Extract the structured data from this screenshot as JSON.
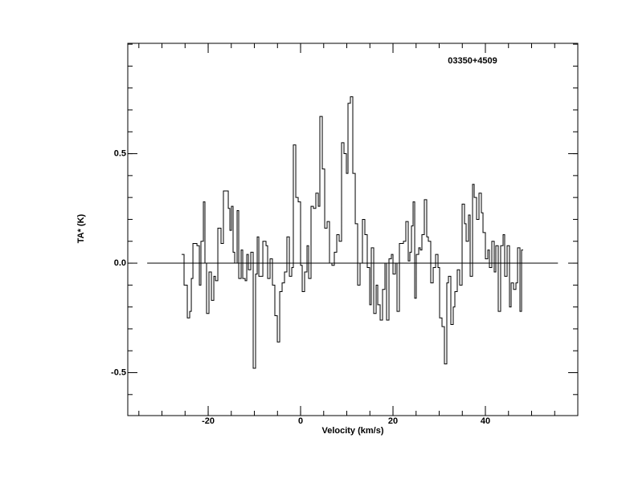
{
  "chart_data": {
    "type": "step",
    "annotation": "03350+4509",
    "xlabel": "Velocity (km/s)",
    "ylabel": "TA* (K)",
    "xlim": [
      -37.4,
      60
    ],
    "ylim": [
      -0.696,
      1.004
    ],
    "xticks": [
      -20,
      0,
      20,
      40
    ],
    "yticks": [
      {
        "value": -0.5,
        "label": "-0.5"
      },
      {
        "value": 0,
        "label": "0.0"
      },
      {
        "value": 0.5,
        "label": "0.5"
      }
    ],
    "xminorticks": [
      -35,
      -30,
      -25,
      -20,
      -15,
      -10,
      -5,
      0,
      5,
      10,
      15,
      20,
      25,
      30,
      35,
      40,
      45,
      50,
      55,
      60
    ],
    "yminorticks": [
      -0.6,
      -0.5,
      -0.4,
      -0.3,
      -0.2,
      -0.1,
      0,
      0.1,
      0.2,
      0.3,
      0.4,
      0.5,
      0.6,
      0.7,
      0.8,
      0.9,
      1.0
    ],
    "baseline": {
      "x": [
        -33.2,
        55.7
      ],
      "y": 0
    },
    "color": "#000000",
    "x": [
      -25.74,
      -25.22,
      -24.52,
      -24.0,
      -23.65,
      -23.3,
      -22.43,
      -21.91,
      -21.57,
      -21.04,
      -20.7,
      -20.35,
      -19.83,
      -19.3,
      -18.78,
      -18.43,
      -17.91,
      -17.22,
      -16.7,
      -15.65,
      -15.3,
      -14.96,
      -14.61,
      -14.26,
      -13.74,
      -13.39,
      -12.87,
      -12.52,
      -12.0,
      -11.65,
      -11.3,
      -10.78,
      -10.26,
      -9.74,
      -9.39,
      -9.04,
      -8.17,
      -7.48,
      -7.13,
      -6.61,
      -6.09,
      -5.57,
      -5.04,
      -4.52,
      -4.0,
      -3.48,
      -2.96,
      -2.43,
      -1.91,
      -1.57,
      -1.04,
      -0.52,
      0.0,
      0.35,
      0.87,
      1.39,
      1.74,
      2.26,
      2.78,
      3.3,
      3.83,
      4.17,
      4.7,
      5.22,
      5.74,
      6.26,
      6.78,
      7.3,
      7.83,
      8.35,
      8.87,
      9.39,
      9.91,
      10.26,
      10.78,
      11.3,
      11.83,
      12.35,
      12.87,
      13.39,
      13.91,
      14.43,
      14.96,
      15.3,
      15.83,
      16.35,
      16.7,
      17.22,
      17.74,
      18.26,
      18.61,
      19.13,
      19.65,
      20.0,
      20.52,
      20.87,
      21.39,
      21.91,
      22.26,
      22.78,
      23.3,
      23.65,
      24.0,
      24.35,
      24.7,
      25.04,
      25.57,
      25.91,
      26.26,
      26.78,
      27.3,
      27.65,
      28.17,
      28.7,
      29.22,
      29.74,
      30.09,
      30.61,
      31.13,
      31.65,
      32.0,
      32.52,
      33.04,
      33.39,
      33.91,
      34.43,
      34.96,
      35.48,
      35.83,
      36.35,
      36.7,
      37.22,
      37.57,
      38.09,
      38.61,
      39.13,
      39.48,
      40.0,
      40.52,
      40.87,
      41.39,
      41.91,
      42.26,
      42.78,
      43.3,
      43.83,
      44.17,
      44.7,
      45.22,
      45.57,
      46.09,
      46.61,
      46.96,
      47.48,
      47.83
    ],
    "values": [
      0.04,
      -0.1,
      -0.25,
      -0.22,
      -0.07,
      0.09,
      0.08,
      -0.1,
      0.1,
      0.28,
      0.0,
      -0.23,
      -0.04,
      -0.17,
      -0.06,
      -0.08,
      0.16,
      0.09,
      0.33,
      0.25,
      0.15,
      0.26,
      0.05,
      0.0,
      0.24,
      -0.07,
      0.06,
      -0.07,
      -0.08,
      0.04,
      -0.03,
      0.05,
      -0.48,
      -0.05,
      0.12,
      -0.06,
      0.1,
      0.08,
      -0.07,
      0.02,
      -0.1,
      -0.24,
      -0.36,
      -0.13,
      -0.09,
      -0.04,
      0.12,
      -0.06,
      -0.02,
      0.54,
      0.3,
      0.28,
      -0.01,
      -0.13,
      -0.04,
      0.08,
      -0.07,
      0.26,
      0.25,
      0.32,
      0.26,
      0.67,
      0.43,
      0.16,
      0.19,
      0.0,
      -0.01,
      0.05,
      0.13,
      0.1,
      0.55,
      0.5,
      0.41,
      0.73,
      0.76,
      0.41,
      0.18,
      -0.1,
      0.0,
      0.2,
      0.13,
      -0.02,
      -0.19,
      0.07,
      -0.23,
      -0.1,
      -0.19,
      -0.26,
      -0.12,
      0.0,
      -0.26,
      0.02,
      0.04,
      -0.05,
      0.0,
      -0.22,
      0.09,
      0.09,
      0.1,
      0.19,
      0.01,
      0.05,
      0.17,
      0.28,
      -0.16,
      0.04,
      0.07,
      0.06,
      0.13,
      0.29,
      0.12,
      0.1,
      -0.09,
      -0.02,
      0.04,
      -0.02,
      -0.25,
      -0.29,
      -0.46,
      -0.09,
      -0.06,
      -0.28,
      -0.2,
      -0.13,
      -0.03,
      -0.1,
      0.27,
      0.18,
      0.1,
      0.22,
      -0.06,
      0.36,
      0.3,
      0.2,
      0.32,
      0.23,
      0.14,
      0.02,
      0.06,
      -0.02,
      0.1,
      -0.04,
      0.08,
      -0.22,
      0.08,
      0.13,
      -0.06,
      0.08,
      -0.2,
      -0.09,
      -0.12,
      -0.09,
      0.07,
      -0.22,
      0.06
    ]
  }
}
